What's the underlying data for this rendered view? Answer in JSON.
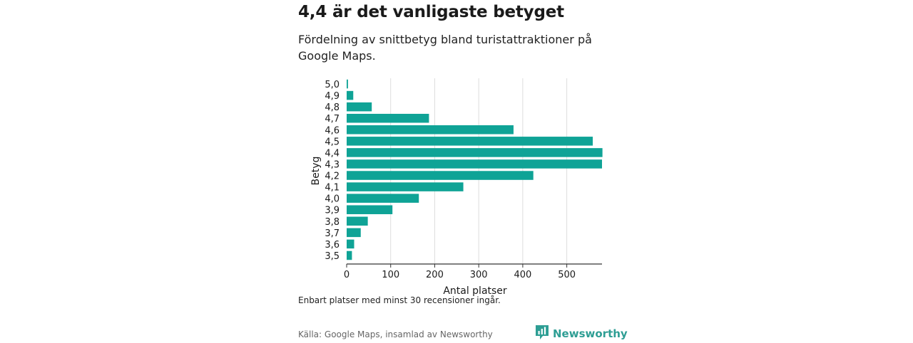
{
  "header": {
    "title": "4,4 är det vanligaste betyget",
    "subtitle": "Fördelning av snittbetyg bland turistattraktioner på Google Maps."
  },
  "footer": {
    "note": "Enbart platser med minst 30 recensioner ingår.",
    "source": "Källa: Google Maps, insamlad av Newsworthy",
    "brand": "Newsworthy"
  },
  "colors": {
    "bar": "#0fa396",
    "brand": "#2e9e94",
    "grid": "#dddddd",
    "axis": "#333333"
  },
  "chart_data": {
    "type": "bar",
    "orientation": "horizontal",
    "categories": [
      "5,0",
      "4,9",
      "4,8",
      "4,7",
      "4,6",
      "4,5",
      "4,4",
      "4,3",
      "4,2",
      "4,1",
      "4,0",
      "3,9",
      "3,8",
      "3,7",
      "3,6",
      "3,5"
    ],
    "values": [
      3,
      15,
      57,
      187,
      379,
      559,
      581,
      580,
      424,
      265,
      164,
      104,
      48,
      32,
      17,
      12
    ],
    "xlabel": "Antal platser",
    "ylabel": "Betyg",
    "xlim": [
      0,
      580
    ],
    "xticks": [
      0,
      100,
      200,
      300,
      400,
      500
    ],
    "grid": "vertical"
  }
}
